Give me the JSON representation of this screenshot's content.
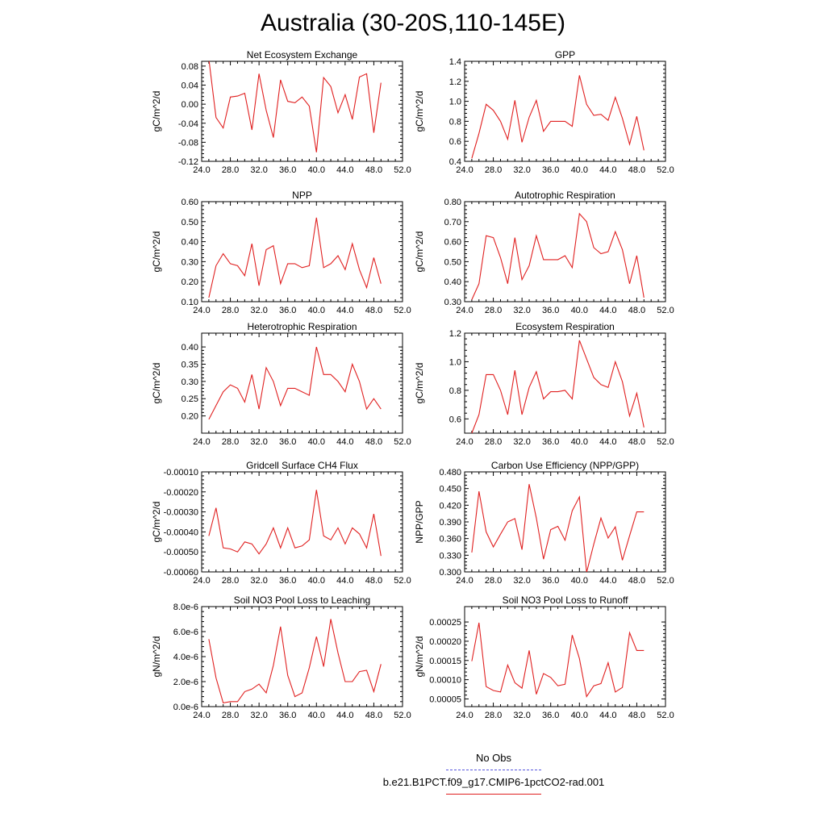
{
  "title": "Australia (30-20S,110-145E)",
  "legend": {
    "obs_label": "No Obs",
    "obs_color": "#5555dd",
    "run_label": "b.e21.B1PCT.f09_g17.CMIP6-1pctCO2-rad.001",
    "run_color": "#e02020"
  },
  "chart_data": [
    {
      "type": "line",
      "title": "Net Ecosystem Exchange",
      "ylabel": "gC/m^2/d",
      "xlim": [
        24,
        52
      ],
      "ylim": [
        -0.12,
        0.09
      ],
      "xticks": [
        24,
        28,
        32,
        36,
        40,
        44,
        48,
        52
      ],
      "xtick_labels": [
        "24.0",
        "28.0",
        "32.0",
        "36.0",
        "40.0",
        "44.0",
        "48.0",
        "52.0"
      ],
      "yticks": [
        -0.12,
        -0.08,
        -0.04,
        0.0,
        0.04,
        0.08
      ],
      "ytick_labels": [
        "-0.12",
        "-0.08",
        "-0.04",
        "0.00",
        "0.04",
        "0.08"
      ],
      "series": [
        {
          "x": [
            25,
            26,
            27,
            28,
            29,
            30,
            31,
            32,
            33,
            34,
            35,
            36,
            37,
            38,
            39,
            40,
            41,
            42,
            43,
            44,
            45,
            46,
            47,
            48,
            49
          ],
          "values": [
            0.095,
            -0.028,
            -0.05,
            0.015,
            0.017,
            0.023,
            -0.054,
            0.064,
            -0.013,
            -0.07,
            0.051,
            0.006,
            0.003,
            0.015,
            -0.004,
            -0.101,
            0.056,
            0.037,
            -0.018,
            0.02,
            -0.032,
            0.057,
            0.064,
            -0.06,
            0.045
          ]
        }
      ]
    },
    {
      "type": "line",
      "title": "GPP",
      "ylabel": "gC/m^2/d",
      "xlim": [
        24,
        52
      ],
      "ylim": [
        0.4,
        1.4
      ],
      "xticks": [
        24,
        28,
        32,
        36,
        40,
        44,
        48,
        52
      ],
      "xtick_labels": [
        "24.0",
        "28.0",
        "32.0",
        "36.0",
        "40.0",
        "44.0",
        "48.0",
        "52.0"
      ],
      "yticks": [
        0.4,
        0.6,
        0.8,
        1.0,
        1.2,
        1.4
      ],
      "ytick_labels": [
        "0.4",
        "0.6",
        "0.8",
        "1.0",
        "1.2",
        "1.4"
      ],
      "series": [
        {
          "x": [
            25,
            26,
            27,
            28,
            29,
            30,
            31,
            32,
            33,
            34,
            35,
            36,
            37,
            38,
            39,
            40,
            41,
            42,
            43,
            44,
            45,
            46,
            47,
            48,
            49
          ],
          "values": [
            0.43,
            0.68,
            0.97,
            0.91,
            0.8,
            0.62,
            1.01,
            0.59,
            0.84,
            1.01,
            0.7,
            0.8,
            0.8,
            0.8,
            0.75,
            1.26,
            0.97,
            0.86,
            0.87,
            0.81,
            1.04,
            0.83,
            0.57,
            0.85,
            0.51
          ]
        }
      ]
    },
    {
      "type": "line",
      "title": "NPP",
      "ylabel": "gC/m^2/d",
      "xlim": [
        24,
        52
      ],
      "ylim": [
        0.1,
        0.6
      ],
      "xticks": [
        24,
        28,
        32,
        36,
        40,
        44,
        48,
        52
      ],
      "xtick_labels": [
        "24.0",
        "28.0",
        "32.0",
        "36.0",
        "40.0",
        "44.0",
        "48.0",
        "52.0"
      ],
      "yticks": [
        0.1,
        0.2,
        0.3,
        0.4,
        0.5,
        0.6
      ],
      "ytick_labels": [
        "0.10",
        "0.20",
        "0.30",
        "0.40",
        "0.50",
        "0.60"
      ],
      "series": [
        {
          "x": [
            25,
            26,
            27,
            28,
            29,
            30,
            31,
            32,
            33,
            34,
            35,
            36,
            37,
            38,
            39,
            40,
            41,
            42,
            43,
            44,
            45,
            46,
            47,
            48,
            49
          ],
          "values": [
            0.12,
            0.28,
            0.34,
            0.29,
            0.28,
            0.23,
            0.39,
            0.18,
            0.36,
            0.38,
            0.19,
            0.29,
            0.29,
            0.27,
            0.28,
            0.52,
            0.27,
            0.29,
            0.33,
            0.26,
            0.39,
            0.26,
            0.17,
            0.32,
            0.19
          ]
        }
      ]
    },
    {
      "type": "line",
      "title": "Autotrophic Respiration",
      "ylabel": "gC/m^2/d",
      "xlim": [
        24,
        52
      ],
      "ylim": [
        0.3,
        0.8
      ],
      "xticks": [
        24,
        28,
        32,
        36,
        40,
        44,
        48,
        52
      ],
      "xtick_labels": [
        "24.0",
        "28.0",
        "32.0",
        "36.0",
        "40.0",
        "44.0",
        "48.0",
        "52.0"
      ],
      "yticks": [
        0.3,
        0.4,
        0.5,
        0.6,
        0.7,
        0.8
      ],
      "ytick_labels": [
        "0.30",
        "0.40",
        "0.50",
        "0.60",
        "0.70",
        "0.80"
      ],
      "series": [
        {
          "x": [
            25,
            26,
            27,
            28,
            29,
            30,
            31,
            32,
            33,
            34,
            35,
            36,
            37,
            38,
            39,
            40,
            41,
            42,
            43,
            44,
            45,
            46,
            47,
            48,
            49
          ],
          "values": [
            0.31,
            0.39,
            0.63,
            0.62,
            0.52,
            0.39,
            0.62,
            0.41,
            0.48,
            0.63,
            0.51,
            0.51,
            0.51,
            0.53,
            0.47,
            0.74,
            0.7,
            0.57,
            0.54,
            0.55,
            0.65,
            0.56,
            0.39,
            0.53,
            0.32
          ]
        }
      ]
    },
    {
      "type": "line",
      "title": "Heterotrophic Respiration",
      "ylabel": "gC/m^2/d",
      "xlim": [
        24,
        52
      ],
      "ylim": [
        0.15,
        0.44
      ],
      "xticks": [
        24,
        28,
        32,
        36,
        40,
        44,
        48,
        52
      ],
      "xtick_labels": [
        "24.0",
        "28.0",
        "32.0",
        "36.0",
        "40.0",
        "44.0",
        "48.0",
        "52.0"
      ],
      "yticks": [
        0.2,
        0.25,
        0.3,
        0.35,
        0.4
      ],
      "ytick_labels": [
        "0.20",
        "0.25",
        "0.30",
        "0.35",
        "0.40"
      ],
      "series": [
        {
          "x": [
            25,
            26,
            27,
            28,
            29,
            30,
            31,
            32,
            33,
            34,
            35,
            36,
            37,
            38,
            39,
            40,
            41,
            42,
            43,
            44,
            45,
            46,
            47,
            48,
            49
          ],
          "values": [
            0.19,
            0.23,
            0.27,
            0.29,
            0.28,
            0.24,
            0.32,
            0.22,
            0.34,
            0.3,
            0.23,
            0.28,
            0.28,
            0.27,
            0.26,
            0.4,
            0.32,
            0.32,
            0.3,
            0.27,
            0.35,
            0.3,
            0.22,
            0.25,
            0.22
          ]
        }
      ]
    },
    {
      "type": "line",
      "title": "Ecosystem Respiration",
      "ylabel": "gC/m^2/d",
      "xlim": [
        24,
        52
      ],
      "ylim": [
        0.5,
        1.2
      ],
      "xticks": [
        24,
        28,
        32,
        36,
        40,
        44,
        48,
        52
      ],
      "xtick_labels": [
        "24.0",
        "28.0",
        "32.0",
        "36.0",
        "40.0",
        "44.0",
        "48.0",
        "52.0"
      ],
      "yticks": [
        0.6,
        0.8,
        1.0,
        1.2
      ],
      "ytick_labels": [
        "0.6",
        "0.8",
        "1.0",
        "1.2"
      ],
      "series": [
        {
          "x": [
            25,
            26,
            27,
            28,
            29,
            30,
            31,
            32,
            33,
            34,
            35,
            36,
            37,
            38,
            39,
            40,
            41,
            42,
            43,
            44,
            45,
            46,
            47,
            48,
            49
          ],
          "values": [
            0.5,
            0.63,
            0.91,
            0.91,
            0.8,
            0.63,
            0.94,
            0.63,
            0.82,
            0.93,
            0.74,
            0.79,
            0.79,
            0.8,
            0.74,
            1.15,
            1.02,
            0.89,
            0.84,
            0.82,
            1.0,
            0.86,
            0.62,
            0.78,
            0.54
          ]
        }
      ]
    },
    {
      "type": "line",
      "title": "Gridcell Surface CH4 Flux",
      "ylabel": "gC/m^2/d",
      "xlim": [
        24,
        52
      ],
      "ylim": [
        -0.0006,
        -0.0001
      ],
      "xticks": [
        24,
        28,
        32,
        36,
        40,
        44,
        48,
        52
      ],
      "xtick_labels": [
        "24.0",
        "28.0",
        "32.0",
        "36.0",
        "40.0",
        "44.0",
        "48.0",
        "52.0"
      ],
      "yticks": [
        -0.0006,
        -0.0005,
        -0.0004,
        -0.0003,
        -0.0002,
        -0.0001
      ],
      "ytick_labels": [
        "-0.00060",
        "-0.00050",
        "-0.00040",
        "-0.00030",
        "-0.00020",
        "-0.00010"
      ],
      "series": [
        {
          "x": [
            25,
            26,
            27,
            28,
            29,
            30,
            31,
            32,
            33,
            34,
            35,
            36,
            37,
            38,
            39,
            40,
            41,
            42,
            43,
            44,
            45,
            46,
            47,
            48,
            49
          ],
          "values": [
            -0.00042,
            -0.00028,
            -0.00048,
            -0.000485,
            -0.0005,
            -0.00045,
            -0.00046,
            -0.00051,
            -0.00046,
            -0.00038,
            -0.00048,
            -0.00038,
            -0.00048,
            -0.00047,
            -0.00044,
            -0.00019,
            -0.00042,
            -0.00044,
            -0.00038,
            -0.00046,
            -0.00038,
            -0.00041,
            -0.00048,
            -0.00031,
            -0.00052
          ]
        }
      ]
    },
    {
      "type": "line",
      "title": "Carbon Use Efficiency (NPP/GPP)",
      "ylabel": "NPP/GPP",
      "xlim": [
        24,
        52
      ],
      "ylim": [
        0.3,
        0.48
      ],
      "xticks": [
        24,
        28,
        32,
        36,
        40,
        44,
        48,
        52
      ],
      "xtick_labels": [
        "24.0",
        "28.0",
        "32.0",
        "36.0",
        "40.0",
        "44.0",
        "48.0",
        "52.0"
      ],
      "yticks": [
        0.3,
        0.33,
        0.36,
        0.39,
        0.42,
        0.45,
        0.48
      ],
      "ytick_labels": [
        "0.300",
        "0.330",
        "0.360",
        "0.390",
        "0.420",
        "0.450",
        "0.480"
      ],
      "series": [
        {
          "x": [
            25,
            26,
            27,
            28,
            29,
            30,
            31,
            32,
            33,
            34,
            35,
            36,
            37,
            38,
            39,
            40,
            41,
            42,
            43,
            44,
            45,
            46,
            47,
            48,
            49
          ],
          "values": [
            0.335,
            0.445,
            0.372,
            0.345,
            0.368,
            0.39,
            0.396,
            0.34,
            0.458,
            0.397,
            0.323,
            0.376,
            0.382,
            0.357,
            0.41,
            0.435,
            0.299,
            0.35,
            0.397,
            0.361,
            0.381,
            0.321,
            0.365,
            0.408,
            0.408
          ]
        }
      ]
    },
    {
      "type": "line",
      "title": "Soil NO3 Pool Loss to Leaching",
      "ylabel": "gN/m^2/d",
      "xlim": [
        24,
        52
      ],
      "ylim": [
        0,
        8e-06
      ],
      "xticks": [
        24,
        28,
        32,
        36,
        40,
        44,
        48,
        52
      ],
      "xtick_labels": [
        "24.0",
        "28.0",
        "32.0",
        "36.0",
        "40.0",
        "44.0",
        "48.0",
        "52.0"
      ],
      "yticks": [
        0,
        2e-06,
        4e-06,
        6e-06,
        8e-06
      ],
      "ytick_labels": [
        "0.0e-6",
        "2.0e-6",
        "4.0e-6",
        "6.0e-6",
        "8.0e-6"
      ],
      "series": [
        {
          "x": [
            25,
            26,
            27,
            28,
            29,
            30,
            31,
            32,
            33,
            34,
            35,
            36,
            37,
            38,
            39,
            40,
            41,
            42,
            43,
            44,
            45,
            46,
            47,
            48,
            49
          ],
          "values": [
            5.4e-06,
            2.3e-06,
            3e-07,
            4e-07,
            4e-07,
            1.2e-06,
            1.4e-06,
            1.8e-06,
            1.1e-06,
            3.3e-06,
            6.4e-06,
            2.5e-06,
            8e-07,
            1.1e-06,
            3.1e-06,
            5.6e-06,
            3.2e-06,
            7e-06,
            4.3e-06,
            2e-06,
            2e-06,
            2.8e-06,
            2.9e-06,
            1.2e-06,
            3.4e-06
          ]
        }
      ]
    },
    {
      "type": "line",
      "title": "Soil NO3 Pool Loss to Runoff",
      "ylabel": "gN/m^2/d",
      "xlim": [
        24,
        52
      ],
      "ylim": [
        3e-05,
        0.00029
      ],
      "xticks": [
        24,
        28,
        32,
        36,
        40,
        44,
        48,
        52
      ],
      "xtick_labels": [
        "24.0",
        "28.0",
        "32.0",
        "36.0",
        "40.0",
        "44.0",
        "48.0",
        "52.0"
      ],
      "yticks": [
        5e-05,
        0.0001,
        0.00015,
        0.0002,
        0.00025
      ],
      "ytick_labels": [
        "0.00005",
        "0.00010",
        "0.00015",
        "0.00020",
        "0.00025"
      ],
      "series": [
        {
          "x": [
            25,
            26,
            27,
            28,
            29,
            30,
            31,
            32,
            33,
            34,
            35,
            36,
            37,
            38,
            39,
            40,
            41,
            42,
            43,
            44,
            45,
            46,
            47,
            48,
            49
          ],
          "values": [
            0.000148,
            0.000248,
            8.2e-05,
            7.2e-05,
            6.8e-05,
            0.000138,
            9.2e-05,
            7.8e-05,
            0.000176,
            6.2e-05,
            0.000116,
            0.000106,
            8.4e-05,
            8.8e-05,
            0.000216,
            0.000155,
            5.6e-05,
            8.4e-05,
            9e-05,
            0.000144,
            6.8e-05,
            8e-05,
            0.000222,
            0.000176,
            0.000176
          ]
        }
      ]
    }
  ]
}
